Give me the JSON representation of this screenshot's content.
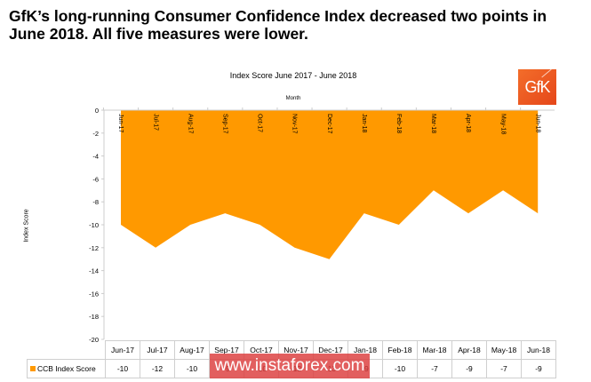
{
  "headline": "GfK’s long-running Consumer Confidence Index decreased two points in June 2018.  All five measures were lower.",
  "logo": {
    "text": "GfK",
    "color": "#e8501e"
  },
  "watermark": "www.instaforex.com",
  "colors": {
    "area": "#ff9900"
  },
  "chart_data": {
    "type": "area",
    "title": "Index Score June 2017 - June 2018",
    "xlabel": "Month",
    "ylabel": "Index Score",
    "ylim": [
      -20,
      0
    ],
    "yticks": [
      0,
      -2,
      -4,
      -6,
      -8,
      -10,
      -12,
      -14,
      -16,
      -18,
      -20
    ],
    "categories": [
      "Jun-17",
      "Jul-17",
      "Aug-17",
      "Sep-17",
      "Oct-17",
      "Nov-17",
      "Dec-17",
      "Jan-18",
      "Feb-18",
      "Mar-18",
      "Apr-18",
      "May-18",
      "Jun-18"
    ],
    "series": [
      {
        "name": "CCB Index Score",
        "values": [
          -10,
          -12,
          -10,
          -9,
          -10,
          -12,
          -13,
          -9,
          -10,
          -7,
          -9,
          -7,
          -9
        ]
      }
    ],
    "legend": "bottom-left (data table)",
    "grid": false
  }
}
